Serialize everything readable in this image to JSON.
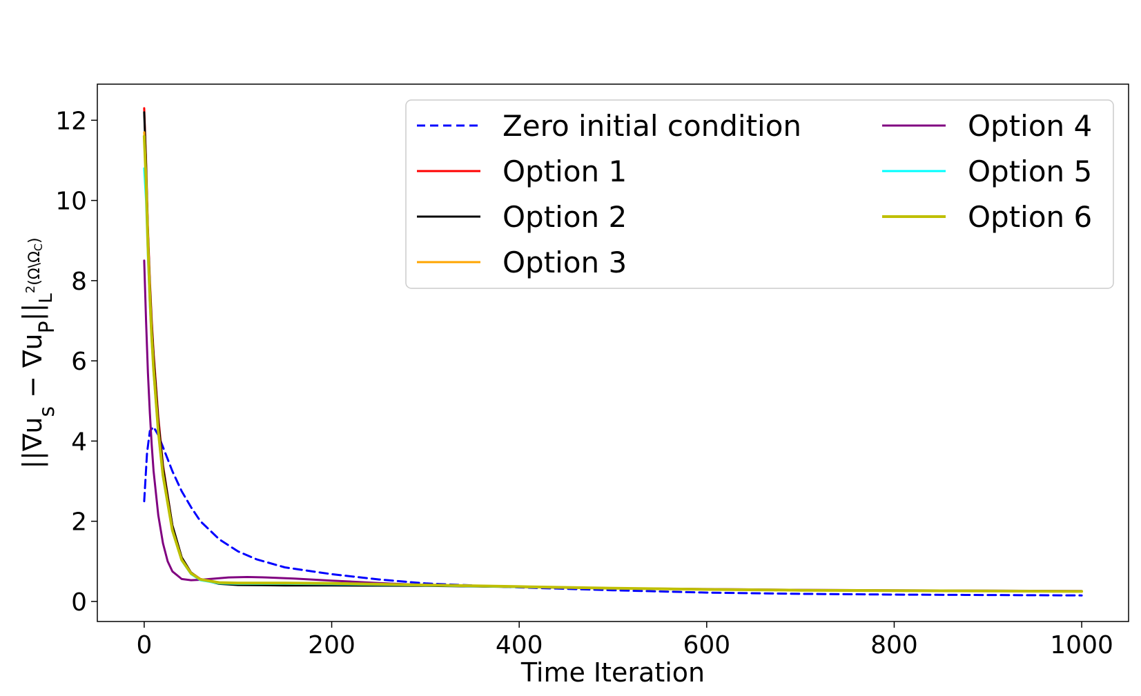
{
  "chart_data": {
    "type": "line",
    "title": "",
    "xlabel": "Time Iteration",
    "ylabel": "||∇u_s − ∇u_P||_{L²(Ω\\Ω_C)}",
    "ylabel_parts": {
      "main": "||∇u",
      "sub1": "s",
      "mid": " − ∇u",
      "sub2": "P",
      "end": "||",
      "norm": "L",
      "norm_sup": "2",
      "norm_domain": "(Ω\\Ω",
      "norm_domain_sub": "C",
      "norm_close": ")"
    },
    "xlim": [
      -50,
      1050
    ],
    "ylim": [
      -0.5,
      12.9
    ],
    "xticks": [
      0,
      200,
      400,
      600,
      800,
      1000
    ],
    "yticks": [
      0,
      2,
      4,
      6,
      8,
      10,
      12
    ],
    "grid": false,
    "legend_placement": "top-right",
    "legend_columns": 2,
    "series": [
      {
        "name": "Zero initial condition",
        "color": "#0000ff",
        "dashed": true,
        "width": 3,
        "x": [
          0,
          3,
          6,
          10,
          15,
          20,
          30,
          40,
          50,
          60,
          80,
          100,
          120,
          150,
          200,
          250,
          300,
          400,
          500,
          600,
          700,
          800,
          900,
          1000
        ],
        "y": [
          2.5,
          3.7,
          4.25,
          4.35,
          4.15,
          3.85,
          3.25,
          2.75,
          2.35,
          2.0,
          1.55,
          1.25,
          1.05,
          0.85,
          0.68,
          0.55,
          0.45,
          0.35,
          0.28,
          0.22,
          0.19,
          0.17,
          0.16,
          0.15
        ]
      },
      {
        "name": "Option 1",
        "color": "#ff0000",
        "dashed": false,
        "width": 3,
        "x": [
          0,
          2,
          4,
          6,
          8,
          10,
          15,
          20,
          30,
          40,
          50,
          60,
          80,
          100,
          150,
          200,
          300,
          400,
          500,
          600,
          700,
          800,
          900,
          1000
        ],
        "y": [
          12.3,
          11.0,
          9.3,
          8.0,
          7.0,
          6.2,
          4.6,
          3.4,
          1.9,
          1.1,
          0.72,
          0.56,
          0.46,
          0.44,
          0.43,
          0.42,
          0.4,
          0.36,
          0.33,
          0.3,
          0.28,
          0.27,
          0.26,
          0.25
        ]
      },
      {
        "name": "Option 2",
        "color": "#000000",
        "dashed": false,
        "width": 3,
        "x": [
          0,
          2,
          4,
          6,
          8,
          10,
          15,
          20,
          30,
          40,
          50,
          60,
          80,
          100,
          150,
          200,
          300,
          400,
          500,
          600,
          700,
          800,
          900,
          1000
        ],
        "y": [
          12.2,
          10.9,
          9.2,
          7.9,
          6.9,
          6.1,
          4.5,
          3.35,
          1.9,
          1.1,
          0.72,
          0.55,
          0.44,
          0.41,
          0.4,
          0.4,
          0.39,
          0.36,
          0.33,
          0.3,
          0.28,
          0.27,
          0.26,
          0.25
        ]
      },
      {
        "name": "Option 3",
        "color": "#ffa500",
        "dashed": false,
        "width": 3,
        "x": [
          0,
          2,
          4,
          6,
          8,
          10,
          15,
          20,
          30,
          40,
          50,
          60,
          80,
          100,
          150,
          200,
          300,
          400,
          500,
          600,
          700,
          800,
          900,
          1000
        ],
        "y": [
          11.7,
          10.6,
          9.0,
          7.7,
          6.7,
          5.9,
          4.3,
          3.2,
          1.8,
          1.05,
          0.7,
          0.55,
          0.47,
          0.46,
          0.46,
          0.45,
          0.41,
          0.37,
          0.33,
          0.3,
          0.28,
          0.27,
          0.26,
          0.25
        ]
      },
      {
        "name": "Option 4",
        "color": "#800080",
        "dashed": false,
        "width": 3,
        "x": [
          0,
          2,
          4,
          6,
          8,
          10,
          15,
          20,
          25,
          30,
          40,
          50,
          60,
          70,
          90,
          110,
          130,
          160,
          200,
          250,
          300,
          400,
          500,
          600,
          700,
          800,
          900,
          1000
        ],
        "y": [
          8.5,
          7.0,
          5.7,
          4.7,
          3.9,
          3.25,
          2.15,
          1.45,
          1.0,
          0.75,
          0.56,
          0.53,
          0.54,
          0.56,
          0.6,
          0.61,
          0.6,
          0.57,
          0.52,
          0.46,
          0.41,
          0.36,
          0.33,
          0.31,
          0.29,
          0.28,
          0.27,
          0.26
        ]
      },
      {
        "name": "Option 5",
        "color": "#00ffff",
        "dashed": false,
        "width": 3,
        "x": [
          0,
          2,
          4,
          6,
          8,
          10,
          15,
          20,
          30,
          40,
          50,
          60,
          80,
          100,
          150,
          200,
          300,
          400,
          500,
          600,
          700,
          800,
          900,
          1000
        ],
        "y": [
          10.8,
          10.0,
          8.6,
          7.4,
          6.5,
          5.7,
          4.2,
          3.1,
          1.75,
          1.02,
          0.68,
          0.53,
          0.45,
          0.44,
          0.44,
          0.43,
          0.4,
          0.36,
          0.33,
          0.3,
          0.28,
          0.27,
          0.26,
          0.25
        ]
      },
      {
        "name": "Option 6",
        "color": "#bfbf00",
        "dashed": false,
        "width": 4,
        "x": [
          0,
          2,
          4,
          6,
          8,
          10,
          15,
          20,
          30,
          40,
          50,
          60,
          80,
          100,
          150,
          200,
          300,
          400,
          500,
          600,
          700,
          800,
          900,
          1000
        ],
        "y": [
          11.6,
          10.5,
          8.9,
          7.6,
          6.6,
          5.8,
          4.25,
          3.15,
          1.78,
          1.04,
          0.7,
          0.55,
          0.47,
          0.46,
          0.46,
          0.45,
          0.41,
          0.37,
          0.33,
          0.3,
          0.28,
          0.27,
          0.26,
          0.25
        ]
      }
    ]
  }
}
